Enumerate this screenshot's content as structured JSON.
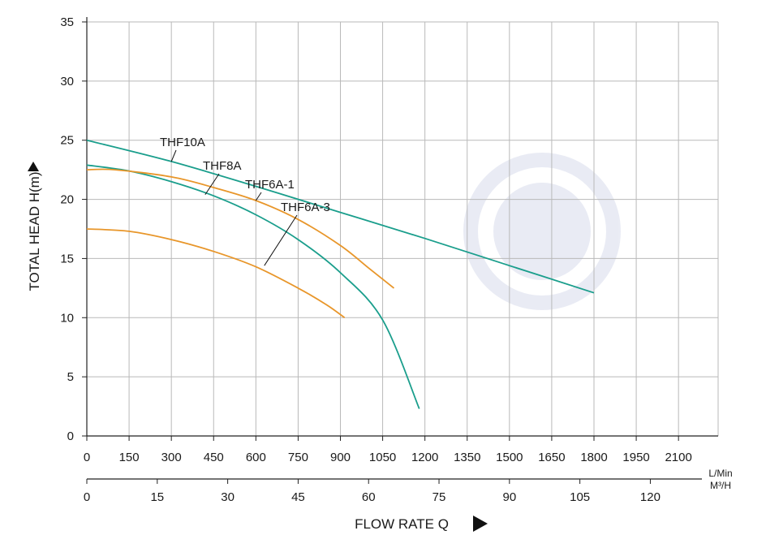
{
  "chart_data": {
    "type": "line",
    "ylabel": "TOTAL HEAD H(m)",
    "xlabel": "FLOW RATE Q",
    "ylim": [
      0,
      35
    ],
    "xlim": [
      0,
      2250
    ],
    "y_ticks": [
      0,
      5,
      10,
      15,
      20,
      25,
      30,
      35
    ],
    "x_ticks_lmin": [
      0,
      150,
      300,
      450,
      600,
      750,
      900,
      1050,
      1200,
      1350,
      1500,
      1650,
      1800,
      1950,
      2100
    ],
    "x_ticks_m3h": [
      0,
      15,
      30,
      45,
      60,
      75,
      90,
      105,
      120
    ],
    "unit_top": "L/Min",
    "unit_bottom": "M³/H",
    "grid": true,
    "colors": {
      "teal": "#1a9e8c",
      "orange": "#e8962a",
      "grid": "#b9b9b9",
      "axis": "#222222"
    },
    "series": [
      {
        "name": "THF10A",
        "color": "#1a9e8c",
        "x": [
          0,
          300,
          600,
          900,
          1200,
          1500,
          1800
        ],
        "y": [
          25,
          23.2,
          21.1,
          18.9,
          16.7,
          14.4,
          12.1
        ]
      },
      {
        "name": "THF8A",
        "color": "#1a9e8c",
        "x": [
          0,
          150,
          300,
          450,
          600,
          750,
          900,
          1050,
          1180
        ],
        "y": [
          22.9,
          22.4,
          21.5,
          20.3,
          18.7,
          16.6,
          13.8,
          9.8,
          2.3
        ]
      },
      {
        "name": "THF6A-1",
        "color": "#e8962a",
        "x": [
          0,
          100,
          300,
          450,
          600,
          750,
          900,
          1000,
          1090
        ],
        "y": [
          22.5,
          22.5,
          21.9,
          21.0,
          19.9,
          18.3,
          16.1,
          14.2,
          12.5
        ]
      },
      {
        "name": "THF6A-3",
        "color": "#e8962a",
        "x": [
          0,
          150,
          300,
          450,
          600,
          750,
          850,
          915
        ],
        "y": [
          17.5,
          17.3,
          16.6,
          15.6,
          14.3,
          12.5,
          11.1,
          10.0
        ]
      }
    ],
    "annotations": [
      {
        "text": "THF10A",
        "x": 300,
        "y": 23.2
      },
      {
        "text": "THF8A",
        "x": 420,
        "y": 20.4
      },
      {
        "text": "THF6A-1",
        "x": 600,
        "y": 19.9
      },
      {
        "text": "THF6A-3",
        "x": 630,
        "y": 14.4
      }
    ]
  }
}
